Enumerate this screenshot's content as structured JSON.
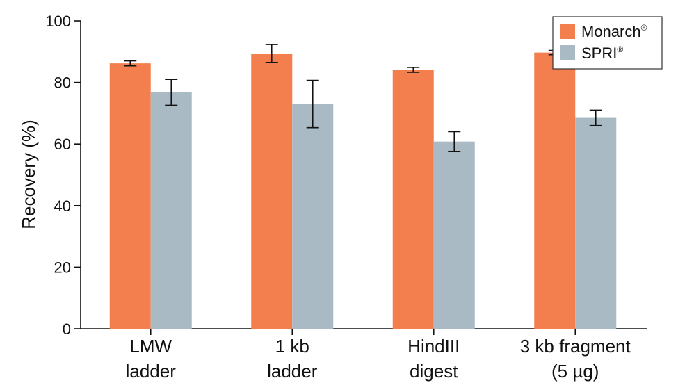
{
  "chart_data": {
    "type": "bar",
    "categories": [
      [
        "LMW",
        "ladder"
      ],
      [
        "1 kb",
        "ladder"
      ],
      [
        "HindIII",
        "digest"
      ],
      [
        "3 kb fragment",
        "(5 µg)"
      ]
    ],
    "series": [
      {
        "name": "Monarch",
        "name_sup": "®",
        "color": "#f37f4f",
        "values": [
          86.2,
          89.4,
          84.1,
          89.7
        ],
        "errors": [
          0.8,
          2.9,
          0.8,
          0.7
        ]
      },
      {
        "name": "SPRI",
        "name_sup": "®",
        "color": "#a9bac4",
        "values": [
          76.8,
          73.0,
          60.8,
          68.5
        ],
        "errors": [
          4.2,
          7.7,
          3.2,
          2.5
        ]
      }
    ],
    "ylabel": "Recovery (%)",
    "ylim": [
      0,
      100
    ],
    "yticks": [
      "0",
      "20",
      "40",
      "60",
      "80",
      "100"
    ],
    "grid": false,
    "legend_position": "top-right"
  }
}
